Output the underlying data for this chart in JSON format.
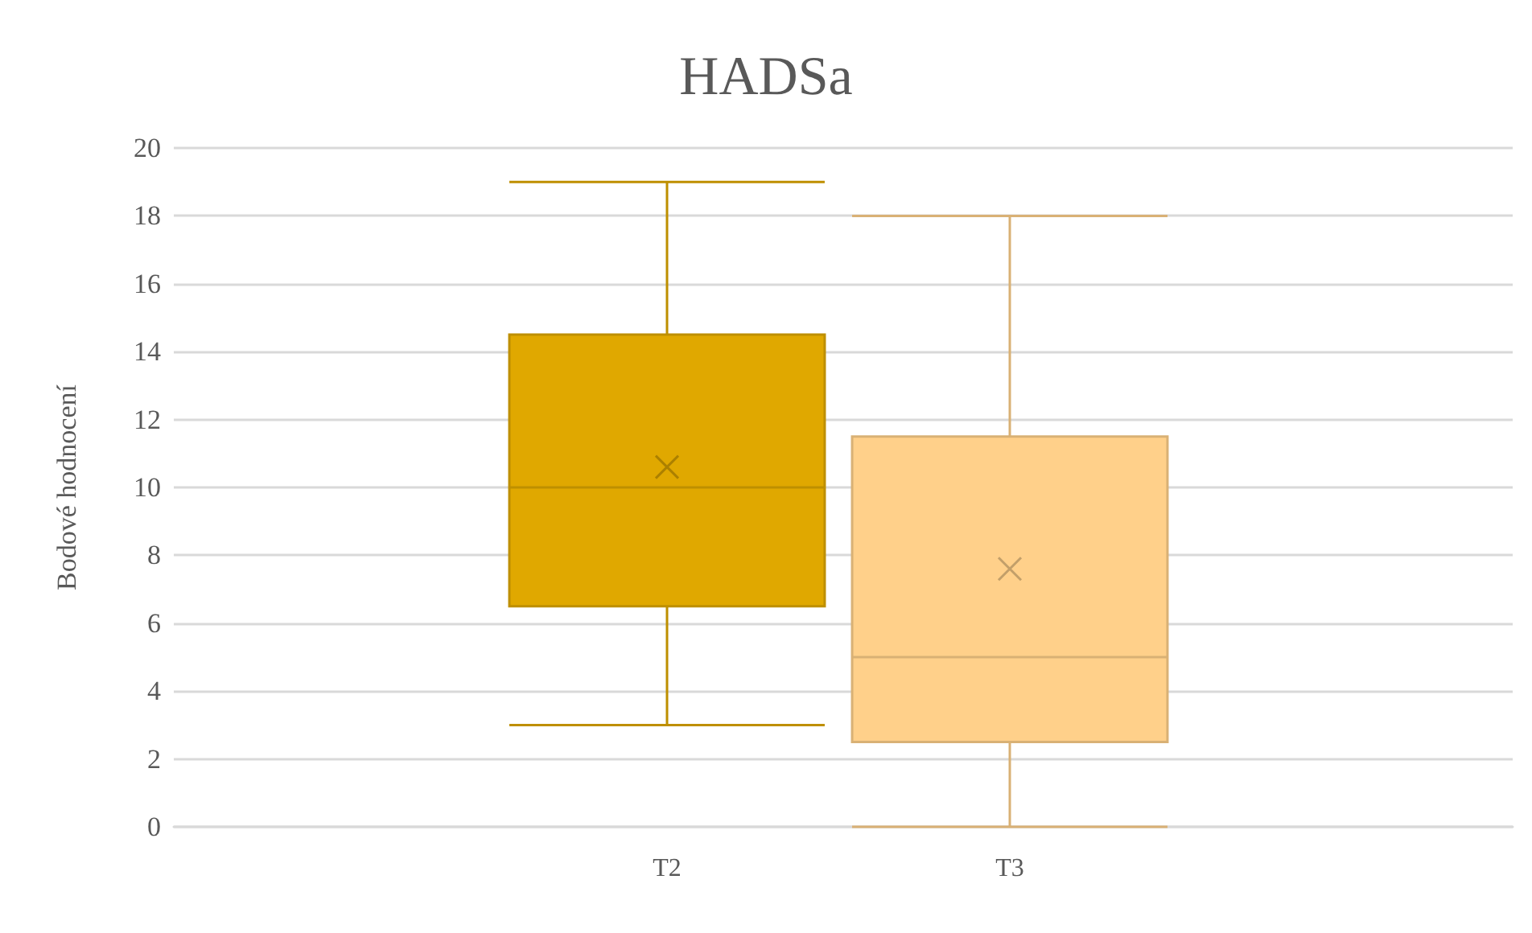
{
  "chart_data": {
    "type": "box",
    "title": "HADSa",
    "ylabel": "Bodové hodnocení",
    "categories": [
      "T2",
      "T3"
    ],
    "colors": [
      "#e0a800",
      "#ffd08a"
    ],
    "boxes": [
      {
        "low": 3,
        "q1": 6.5,
        "median": 10,
        "q3": 14.5,
        "high": 19,
        "mean": 10.6
      },
      {
        "low": 0,
        "q1": 2.5,
        "median": 5,
        "q3": 11.5,
        "high": 18,
        "mean": 7.6
      }
    ],
    "ylim": [
      0,
      20
    ],
    "yticks": [
      0,
      2,
      4,
      6,
      8,
      10,
      12,
      14,
      16,
      18,
      20
    ],
    "grid": "y",
    "marker": "cross"
  }
}
